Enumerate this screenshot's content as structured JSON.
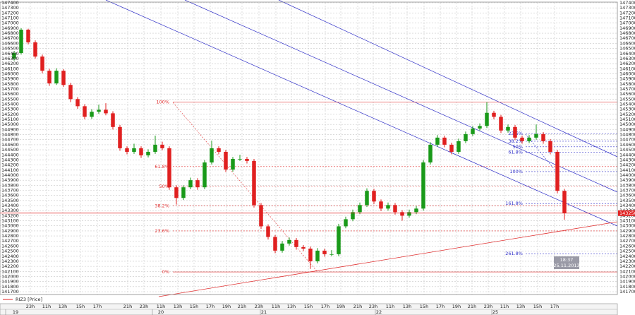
{
  "chart_data": {
    "type": "candlestick",
    "series_name": "RIZ3 [Price]",
    "up_color": "#1a9a1a",
    "down_color": "#e02020",
    "ylim": [
      141700,
      147400
    ],
    "yticks": [
      141700,
      141800,
      141900,
      142000,
      142100,
      142200,
      142300,
      142400,
      142500,
      142600,
      142700,
      142800,
      142900,
      143000,
      143100,
      143200,
      143300,
      143400,
      143500,
      143600,
      143700,
      143800,
      143900,
      144000,
      144100,
      144200,
      144300,
      144400,
      144500,
      144600,
      144700,
      144800,
      144900,
      145000,
      145100,
      145200,
      145300,
      145400,
      145500,
      145600,
      145700,
      145800,
      145900,
      146000,
      146100,
      146200,
      146300,
      146400,
      146500,
      146600,
      146700,
      146800,
      146900,
      147000,
      147100,
      147200,
      147300,
      147400
    ],
    "grid": true,
    "hours": [
      "23h",
      "11h",
      "13h",
      "15h",
      "17h",
      "21h",
      "23h",
      "11h",
      "13h",
      "15h",
      "17h",
      "19h",
      "21h",
      "23h",
      "11h",
      "13h",
      "15h",
      "17h",
      "19h",
      "21h",
      "23h",
      "11h",
      "13h",
      "15h",
      "17h",
      "19h",
      "21h",
      "23h",
      "11h",
      "13h",
      "15h",
      "17h"
    ],
    "days": [
      "19",
      "20",
      "21",
      "22",
      "25"
    ],
    "candles": [
      [
        146300,
        146450,
        146260,
        146410
      ],
      [
        146410,
        146900,
        146380,
        146870
      ],
      [
        146870,
        146890,
        146580,
        146620
      ],
      [
        146620,
        146660,
        146300,
        146340
      ],
      [
        146340,
        146380,
        146010,
        146060
      ],
      [
        146060,
        146100,
        145760,
        145810
      ],
      [
        145810,
        146110,
        145780,
        146060
      ],
      [
        146060,
        146090,
        145740,
        145780
      ],
      [
        145780,
        145820,
        145440,
        145500
      ],
      [
        145500,
        145540,
        145310,
        145360
      ],
      [
        145360,
        145400,
        145100,
        145150
      ],
      [
        145150,
        145300,
        145110,
        145250
      ],
      [
        145250,
        145390,
        145210,
        145290
      ],
      [
        145290,
        145420,
        145180,
        145220
      ],
      [
        145220,
        145260,
        144900,
        144950
      ],
      [
        144950,
        144990,
        144480,
        144530
      ],
      [
        144530,
        144570,
        144410,
        144460
      ],
      [
        144460,
        144620,
        144420,
        144530
      ],
      [
        144530,
        144570,
        144340,
        144390
      ],
      [
        144390,
        144510,
        144350,
        144460
      ],
      [
        144460,
        144780,
        144420,
        144600
      ],
      [
        144600,
        144660,
        144490,
        144530
      ],
      [
        144530,
        144570,
        143710,
        143760
      ],
      [
        143760,
        143800,
        143420,
        143550
      ],
      [
        143550,
        143800,
        143510,
        143760
      ],
      [
        143760,
        143950,
        143720,
        143900
      ],
      [
        143900,
        143940,
        143710,
        143760
      ],
      [
        143760,
        144300,
        143720,
        144250
      ],
      [
        144250,
        144680,
        144210,
        144530
      ],
      [
        144530,
        144570,
        144410,
        144460
      ],
      [
        144460,
        144500,
        144060,
        144110
      ],
      [
        144110,
        144360,
        144070,
        144320
      ],
      [
        144320,
        144400,
        144280,
        144320
      ],
      [
        144320,
        144360,
        144230,
        144280
      ],
      [
        144280,
        144320,
        143360,
        143410
      ],
      [
        143410,
        143450,
        142940,
        142990
      ],
      [
        142990,
        143030,
        142730,
        142780
      ],
      [
        142780,
        142820,
        142460,
        142510
      ],
      [
        142510,
        142700,
        142470,
        142650
      ],
      [
        142650,
        142770,
        142610,
        142720
      ],
      [
        142720,
        142760,
        142530,
        142580
      ],
      [
        142580,
        142620,
        142500,
        142550
      ],
      [
        142550,
        142590,
        142150,
        142300
      ],
      [
        142300,
        142560,
        142260,
        142510
      ],
      [
        142510,
        142550,
        142390,
        142440
      ],
      [
        142440,
        142520,
        142400,
        142440
      ],
      [
        142440,
        143040,
        142400,
        142990
      ],
      [
        142990,
        143180,
        142950,
        143130
      ],
      [
        143130,
        143320,
        143090,
        143270
      ],
      [
        143270,
        143460,
        143230,
        143410
      ],
      [
        143410,
        143740,
        143370,
        143690
      ],
      [
        143690,
        143730,
        143430,
        143480
      ],
      [
        143480,
        143520,
        143290,
        143340
      ],
      [
        143340,
        143460,
        143300,
        143410
      ],
      [
        143410,
        143450,
        143220,
        143270
      ],
      [
        143270,
        143310,
        143100,
        143200
      ],
      [
        143200,
        143320,
        143160,
        143270
      ],
      [
        143270,
        143390,
        143230,
        143340
      ],
      [
        143340,
        144300,
        143300,
        144250
      ],
      [
        144250,
        144650,
        144210,
        144600
      ],
      [
        144600,
        144790,
        144560,
        144740
      ],
      [
        144740,
        144780,
        144550,
        144600
      ],
      [
        144600,
        144640,
        144410,
        144460
      ],
      [
        144460,
        144720,
        144420,
        144670
      ],
      [
        144670,
        144860,
        144630,
        144810
      ],
      [
        144810,
        144970,
        144770,
        144920
      ],
      [
        144920,
        145020,
        144880,
        144970
      ],
      [
        144970,
        145440,
        144930,
        145230
      ],
      [
        145230,
        145270,
        145100,
        145150
      ],
      [
        145150,
        145190,
        144830,
        144880
      ],
      [
        144880,
        145000,
        144840,
        144950
      ],
      [
        144950,
        144990,
        144690,
        144740
      ],
      [
        144740,
        144780,
        144620,
        144670
      ],
      [
        144670,
        144790,
        144630,
        144740
      ],
      [
        144740,
        145000,
        144700,
        144810
      ],
      [
        144810,
        144850,
        144620,
        144670
      ],
      [
        144670,
        144710,
        144410,
        144460
      ],
      [
        144460,
        144500,
        143640,
        143690
      ],
      [
        143690,
        143730,
        143120,
        143250
      ]
    ],
    "last_price": 143250,
    "fib_left": [
      {
        "label": "100%",
        "price": 145440
      },
      {
        "label": "61.8%",
        "price": 144170
      },
      {
        "label": "50%",
        "price": 143780
      },
      {
        "label": "38.2%",
        "price": 143390
      },
      {
        "label": "23.6%",
        "price": 142900
      },
      {
        "label": "0%",
        "price": 142090
      }
    ],
    "fib_right": [
      {
        "label": "23.6%",
        "price": 144820
      },
      {
        "label": "38.2%",
        "price": 144670
      },
      {
        "label": "50%",
        "price": 144560
      },
      {
        "label": "61.8%",
        "price": 144450
      },
      {
        "label": "100%",
        "price": 144070
      },
      {
        "label": "161.8%",
        "price": 143440
      },
      {
        "label": "261.8%",
        "price": 142450
      }
    ],
    "cursor": {
      "time": "18:37",
      "date": "25.11.2013"
    }
  }
}
